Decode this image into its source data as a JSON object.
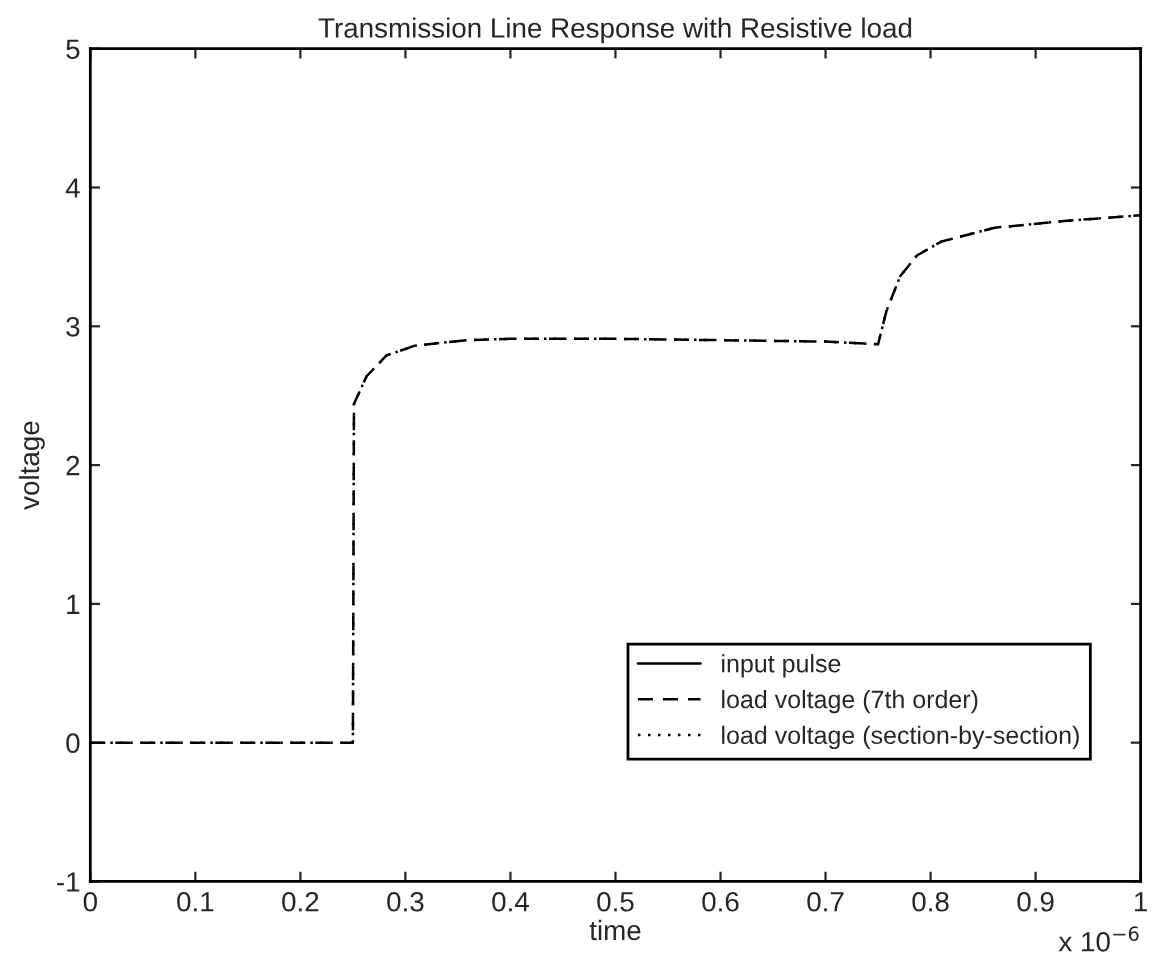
{
  "chart_data": {
    "type": "line",
    "title": "Transmission Line Response with Resistive load",
    "xlabel": "time",
    "ylabel": "voltage",
    "annotations": [
      "x 10$^{−6}$"
    ],
    "x": [
      0,
      0.1,
      0.2,
      0.25,
      0.251,
      0.263,
      0.282,
      0.309,
      0.358,
      0.4,
      0.5,
      0.6,
      0.7,
      0.75,
      0.758,
      0.771,
      0.787,
      0.81,
      0.861,
      0.93,
      1.0
    ],
    "series": [
      {
        "name": "input pulse",
        "color": "#000000",
        "line_style": "solid",
        "values": [
          null,
          null,
          null,
          null,
          null,
          null,
          null,
          null,
          null,
          null,
          null,
          null,
          null,
          null,
          null,
          null,
          null,
          null,
          null,
          null,
          null
        ]
      },
      {
        "name": "load voltage (7th order)",
        "color": "#000000",
        "line_style": "dashed",
        "values": [
          0,
          0,
          0,
          0,
          2.44,
          2.64,
          2.79,
          2.86,
          2.9,
          2.91,
          2.91,
          2.9,
          2.89,
          2.87,
          3.11,
          3.36,
          3.51,
          3.61,
          3.71,
          3.76,
          3.8
        ]
      },
      {
        "name": "load voltage (section-by-section)",
        "color": "#000000",
        "line_style": "dotted",
        "values": [
          0,
          0,
          0,
          0,
          2.44,
          2.64,
          2.79,
          2.86,
          2.9,
          2.91,
          2.91,
          2.9,
          2.89,
          2.87,
          3.11,
          3.36,
          3.51,
          3.61,
          3.71,
          3.76,
          3.8
        ]
      }
    ],
    "xlim": [
      0,
      1
    ],
    "xticks": [
      0,
      0.1,
      0.2,
      0.3,
      0.4,
      0.5,
      0.6,
      0.7,
      0.8,
      0.9,
      1
    ],
    "ylim": [
      -1,
      5
    ],
    "yticks": [
      -1,
      0,
      1,
      2,
      3,
      4,
      5
    ],
    "grid": false,
    "legend": "bottom right",
    "marker": "none"
  }
}
